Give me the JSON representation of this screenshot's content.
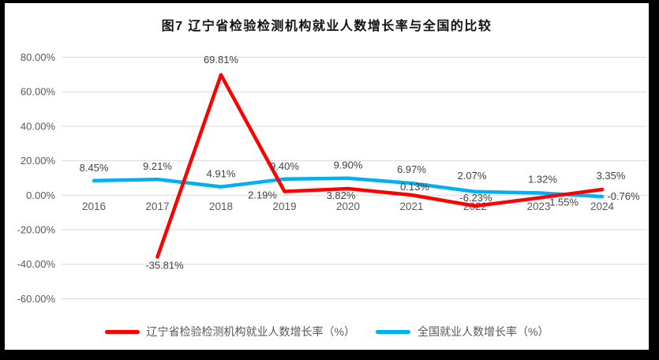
{
  "frame": {
    "border_color": "#000000",
    "canvas_color": "#ffffff"
  },
  "chart_data": {
    "type": "line",
    "title": "图7 辽宁省检验检测机构就业人数增长率与全国的比较",
    "categories": [
      "2016",
      "2017",
      "2018",
      "2019",
      "2020",
      "2021",
      "2022",
      "2023",
      "2024"
    ],
    "series": [
      {
        "id": "liaoning",
        "name": "辽宁省检验检测机构就业人数增长率（%）",
        "color": "#ff0000",
        "values": [
          null,
          -35.81,
          69.81,
          2.19,
          3.82,
          0.13,
          -6.23,
          -1.55,
          3.35
        ],
        "label_offsets": [
          [
            0,
            0
          ],
          [
            9,
            15
          ],
          [
            0,
            -15
          ],
          [
            -28,
            9
          ],
          [
            -9,
            13
          ],
          [
            4,
            -6
          ],
          [
            1,
            -6
          ],
          [
            30,
            10
          ],
          [
            11,
            -13
          ]
        ]
      },
      {
        "id": "national",
        "name": "全国就业人数增长率（%）",
        "color": "#00b0f0",
        "values": [
          8.45,
          9.21,
          4.91,
          9.4,
          9.9,
          6.97,
          2.07,
          1.32,
          -0.76
        ],
        "label_offsets": [
          [
            0,
            -12
          ],
          [
            0,
            -12
          ],
          [
            0,
            -12
          ],
          [
            0,
            -12
          ],
          [
            0,
            -12
          ],
          [
            0,
            -13
          ],
          [
            -4,
            -16
          ],
          [
            5,
            -13
          ],
          [
            27,
            4
          ]
        ]
      }
    ],
    "y_ticks": [
      {
        "value": 80,
        "label": "80.00%"
      },
      {
        "value": 60,
        "label": "60.00%"
      },
      {
        "value": 40,
        "label": "40.00%"
      },
      {
        "value": 20,
        "label": "20.00%"
      },
      {
        "value": 0,
        "label": "0.00%"
      },
      {
        "value": -20,
        "label": "-20.00%"
      },
      {
        "value": -40,
        "label": "-40.00%"
      },
      {
        "value": -60,
        "label": "-60.00%"
      }
    ],
    "ylim": [
      -60,
      80
    ],
    "xlabel": "",
    "ylabel": "",
    "grid": true,
    "grid_color": "#d9d9d9",
    "legend_position": "bottom"
  }
}
